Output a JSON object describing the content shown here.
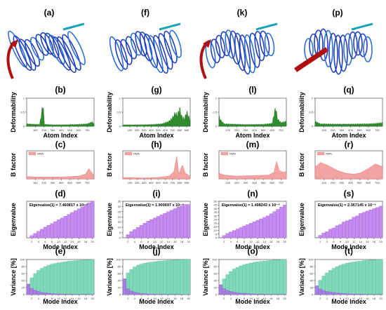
{
  "colors": {
    "deform_fill": "#2e8b2e",
    "deform_line": "#1f6e1f",
    "bfactor_fill": "#f4a3a3",
    "bfactor_line": "#e06060",
    "eig_bar": "#c58cf0",
    "eig_edge": "#9a55d4",
    "var_cumulative": "#7fd8b8",
    "var_individual": "#a77fe0",
    "protein_blue": "#1f3fbf",
    "arrow_red": "#b01010",
    "arrow_teal": "#1aa3b8",
    "grid": "#d8d8d8",
    "axis": "#333333"
  },
  "icons": [
    "protein-ribbon-structure",
    "motion-arrow"
  ],
  "structure_labels": [
    "(a)",
    "(f)",
    "(k)",
    "(p)"
  ],
  "axis_titles": {
    "deformability": "Deformability",
    "atom_index": "Atom Index",
    "bfactor": "B factor",
    "eigenvalue": "Eigenvalue",
    "mode_index": "Mode Index",
    "variance": "Variance [%]"
  },
  "legend_nma": "NMA",
  "chart_data": [
    {
      "type": "area",
      "label": "(b)",
      "row": "deformability",
      "title": "",
      "xlabel": "Atom Index",
      "ylabel": "Deformability",
      "xlim": [
        0,
        780
      ],
      "ylim": [
        0,
        1
      ],
      "xticks": [
        "100",
        "200",
        "300",
        "400",
        "500",
        "600",
        "700"
      ],
      "yticks": [
        "0",
        "0.5",
        "1"
      ],
      "profile": [
        [
          0,
          0.1
        ],
        [
          100,
          0.08
        ],
        [
          150,
          0.07
        ],
        [
          190,
          0.95
        ],
        [
          205,
          0.08
        ],
        [
          300,
          0.06
        ],
        [
          420,
          0.06
        ],
        [
          520,
          0.07
        ],
        [
          620,
          0.08
        ],
        [
          700,
          0.1
        ],
        [
          760,
          0.18
        ],
        [
          780,
          0.1
        ]
      ]
    },
    {
      "type": "area",
      "label": "(g)",
      "row": "deformability",
      "title": "",
      "xlabel": "Atom Index",
      "ylabel": "Deformability",
      "xlim": [
        0,
        950
      ],
      "ylim": [
        0,
        1
      ],
      "xticks": [
        "100",
        "200",
        "300",
        "400",
        "500",
        "600",
        "700",
        "800",
        "900"
      ],
      "yticks": [
        "0",
        "0.5",
        "1"
      ],
      "profile": [
        [
          0,
          0.06
        ],
        [
          200,
          0.06
        ],
        [
          400,
          0.07
        ],
        [
          550,
          0.1
        ],
        [
          650,
          0.2
        ],
        [
          700,
          0.35
        ],
        [
          740,
          0.55
        ],
        [
          770,
          0.45
        ],
        [
          800,
          0.75
        ],
        [
          830,
          0.4
        ],
        [
          870,
          0.3
        ],
        [
          900,
          0.6
        ],
        [
          950,
          0.25
        ]
      ]
    },
    {
      "type": "area",
      "label": "(l)",
      "row": "deformability",
      "title": "",
      "xlabel": "Atom Index",
      "ylabel": "Deformability",
      "xlim": [
        0,
        760
      ],
      "ylim": [
        0,
        1
      ],
      "xticks": [
        "100",
        "200",
        "300",
        "400",
        "500",
        "600",
        "700"
      ],
      "yticks": [
        "0",
        "0.5",
        "1"
      ],
      "profile": [
        [
          0,
          0.4
        ],
        [
          20,
          0.25
        ],
        [
          60,
          0.1
        ],
        [
          300,
          0.07
        ],
        [
          500,
          0.08
        ],
        [
          600,
          0.12
        ],
        [
          640,
          0.8
        ],
        [
          660,
          0.3
        ],
        [
          700,
          0.15
        ],
        [
          760,
          0.2
        ]
      ]
    },
    {
      "type": "area",
      "label": "(q)",
      "row": "deformability",
      "title": "",
      "xlabel": "Atom Index",
      "ylabel": "Deformability",
      "xlim": [
        0,
        760
      ],
      "ylim": [
        0,
        1
      ],
      "xticks": [
        "100",
        "200",
        "300",
        "400",
        "500",
        "600",
        "700"
      ],
      "yticks": [
        "0",
        "0.5",
        "1"
      ],
      "profile": [
        [
          0,
          0.2
        ],
        [
          60,
          0.1
        ],
        [
          200,
          0.09
        ],
        [
          400,
          0.09
        ],
        [
          600,
          0.1
        ],
        [
          700,
          0.12
        ],
        [
          760,
          0.15
        ]
      ]
    },
    {
      "type": "area",
      "label": "(c)",
      "row": "bfactor",
      "title": "",
      "xlabel": "",
      "ylabel": "B factor",
      "xlim": [
        0,
        780
      ],
      "ylim": [
        0,
        60
      ],
      "xticks": [
        "100",
        "200",
        "300",
        "400",
        "500",
        "600",
        "700"
      ],
      "yticks": [],
      "legend": "NMA",
      "profile": [
        [
          0,
          5
        ],
        [
          100,
          4
        ],
        [
          200,
          4
        ],
        [
          300,
          4
        ],
        [
          400,
          4
        ],
        [
          500,
          5
        ],
        [
          600,
          6
        ],
        [
          680,
          10
        ],
        [
          720,
          22
        ],
        [
          760,
          12
        ],
        [
          780,
          6
        ]
      ]
    },
    {
      "type": "area",
      "label": "(h)",
      "row": "bfactor",
      "title": "",
      "xlabel": "",
      "ylabel": "B factor",
      "xlim": [
        0,
        950
      ],
      "ylim": [
        0,
        60
      ],
      "xticks": [
        "100",
        "200",
        "300",
        "400",
        "500",
        "600",
        "700",
        "800",
        "900"
      ],
      "yticks": [],
      "legend": "NMA",
      "profile": [
        [
          0,
          3
        ],
        [
          300,
          2
        ],
        [
          500,
          3
        ],
        [
          650,
          6
        ],
        [
          720,
          15
        ],
        [
          760,
          48
        ],
        [
          790,
          10
        ],
        [
          840,
          30
        ],
        [
          880,
          12
        ],
        [
          950,
          6
        ]
      ]
    },
    {
      "type": "area",
      "label": "(m)",
      "row": "bfactor",
      "title": "",
      "xlabel": "",
      "ylabel": "B factor",
      "xlim": [
        0,
        760
      ],
      "ylim": [
        0,
        60
      ],
      "xticks": [
        "100",
        "200",
        "300",
        "400",
        "500",
        "600",
        "700"
      ],
      "yticks": [],
      "legend": "NMA",
      "profile": [
        [
          0,
          12
        ],
        [
          60,
          8
        ],
        [
          200,
          6
        ],
        [
          400,
          7
        ],
        [
          560,
          8
        ],
        [
          620,
          14
        ],
        [
          650,
          38
        ],
        [
          680,
          18
        ],
        [
          720,
          14
        ],
        [
          760,
          16
        ]
      ]
    },
    {
      "type": "area",
      "label": "(r)",
      "row": "bfactor",
      "title": "",
      "xlabel": "",
      "ylabel": "B factor",
      "xlim": [
        0,
        760
      ],
      "ylim": [
        0,
        60
      ],
      "xticks": [
        "100",
        "200",
        "300",
        "400",
        "500",
        "600",
        "700"
      ],
      "yticks": [],
      "legend": "NMA",
      "profile": [
        [
          0,
          25
        ],
        [
          60,
          35
        ],
        [
          150,
          28
        ],
        [
          250,
          18
        ],
        [
          350,
          12
        ],
        [
          430,
          10
        ],
        [
          500,
          12
        ],
        [
          600,
          22
        ],
        [
          680,
          32
        ],
        [
          760,
          26
        ]
      ]
    },
    {
      "type": "bar",
      "label": "(d)",
      "row": "eigenvalue",
      "title": "",
      "xlabel": "Mode Index",
      "ylabel": "Eigenvalue",
      "annotation": "Eigenvalue(1) = 7.460817 x 10⁻⁴",
      "categories": [
        "1",
        "2",
        "3",
        "4",
        "5",
        "6",
        "7",
        "8",
        "9",
        "10",
        "11",
        "12",
        "13",
        "14",
        "15",
        "16",
        "17",
        "18",
        "19",
        "20"
      ],
      "values": [
        1,
        9,
        17,
        25,
        33,
        41,
        48,
        55,
        62,
        69,
        76,
        83,
        90,
        97,
        104,
        111,
        118,
        126,
        134,
        140
      ],
      "ylim": [
        0,
        140
      ],
      "xticks": [
        "2",
        "4",
        "6",
        "8",
        "10",
        "12",
        "14",
        "16",
        "18",
        "20"
      ],
      "yticks": []
    },
    {
      "type": "bar",
      "label": "(i)",
      "row": "eigenvalue",
      "title": "",
      "xlabel": "Mode Index",
      "ylabel": "Eigenvalue",
      "annotation": "Eigenvalue(1) = 1.900697 x 10⁻⁴",
      "categories": [
        "1",
        "2",
        "3",
        "4",
        "5",
        "6",
        "7",
        "8",
        "9",
        "10",
        "11",
        "12",
        "13",
        "14",
        "15",
        "16",
        "17",
        "18",
        "19",
        "20"
      ],
      "values": [
        0.2,
        3,
        6,
        8,
        10,
        12,
        14,
        16,
        17.5,
        19,
        20.5,
        22,
        23.5,
        25,
        26.5,
        28,
        29.5,
        31,
        32,
        32
      ],
      "ylim": [
        0,
        35
      ],
      "xticks": [
        "2",
        "4",
        "6",
        "8",
        "10",
        "12",
        "14",
        "16",
        "18",
        "20"
      ],
      "yticks": [
        "0",
        "5",
        "10",
        "15",
        "20",
        "25",
        "30",
        "35"
      ]
    },
    {
      "type": "bar",
      "label": "(n)",
      "row": "eigenvalue",
      "title": "",
      "xlabel": "Mode Index",
      "ylabel": "Eigenvalue",
      "annotation": "Eigenvalue(1) = 1.498243 x 10⁻⁴",
      "categories": [
        "1",
        "2",
        "3",
        "4",
        "5",
        "6",
        "7",
        "8",
        "9",
        "10",
        "11",
        "12",
        "13",
        "14",
        "15",
        "16",
        "17",
        "18",
        "19",
        "20"
      ],
      "values": [
        0.2,
        3,
        6,
        8,
        10,
        12,
        14,
        16,
        18,
        20,
        22,
        24,
        26,
        28,
        30,
        33,
        36,
        39,
        42,
        45
      ],
      "ylim": [
        0,
        50
      ],
      "xticks": [
        "2",
        "4",
        "6",
        "8",
        "10",
        "12",
        "14",
        "16",
        "18",
        "20"
      ],
      "yticks": [
        "0",
        "5",
        "10",
        "15",
        "20",
        "25",
        "30",
        "35",
        "40",
        "45",
        "50"
      ]
    },
    {
      "type": "bar",
      "label": "(s)",
      "row": "eigenvalue",
      "title": "",
      "xlabel": "Mode Index",
      "ylabel": "Eigenvalue",
      "annotation": "Eigenvalue(1) = 2.367145 x 10⁻⁴",
      "categories": [
        "1",
        "2",
        "3",
        "4",
        "5",
        "6",
        "7",
        "8",
        "9",
        "10",
        "11",
        "12",
        "13",
        "14",
        "15",
        "16",
        "17",
        "18",
        "19",
        "20"
      ],
      "values": [
        0.3,
        2,
        4,
        5,
        7,
        8,
        10,
        11,
        13,
        14,
        15,
        17,
        18,
        20,
        21,
        22,
        23,
        24,
        25,
        26
      ],
      "ylim": [
        0,
        30
      ],
      "xticks": [
        "2",
        "4",
        "6",
        "8",
        "10",
        "12",
        "14",
        "16",
        "18",
        "20"
      ],
      "yticks": []
    },
    {
      "type": "bar",
      "label": "(e)",
      "row": "variance",
      "title": "",
      "xlabel": "Mode Index",
      "ylabel": "Variance [%]",
      "categories": [
        "1",
        "2",
        "3",
        "4",
        "5",
        "6",
        "7",
        "8",
        "9",
        "10",
        "11",
        "12",
        "13",
        "14",
        "15",
        "16",
        "17",
        "18",
        "19",
        "20"
      ],
      "series": [
        {
          "values": [
            30,
            48,
            60,
            69,
            75,
            80,
            84,
            87,
            89,
            91,
            92.5,
            94,
            95,
            96,
            97,
            97.5,
            98,
            98.5,
            99,
            100
          ]
        },
        {
          "values": [
            30,
            18,
            12,
            9,
            6,
            5,
            4,
            3,
            2,
            2,
            1.5,
            1.5,
            1,
            1,
            1,
            0.5,
            0.5,
            0.5,
            0.5,
            0.5
          ]
        }
      ],
      "ylim": [
        0,
        100
      ],
      "xticks": [
        "2",
        "4",
        "6",
        "8",
        "10",
        "12",
        "14",
        "16",
        "18",
        "20"
      ],
      "yticks": [
        "0",
        "20",
        "40",
        "60",
        "80",
        "100"
      ]
    },
    {
      "type": "bar",
      "label": "(j)",
      "row": "variance",
      "title": "",
      "xlabel": "Mode Index",
      "ylabel": "Variance [%]",
      "categories": [
        "1",
        "2",
        "3",
        "4",
        "5",
        "6",
        "7",
        "8",
        "9",
        "10",
        "11",
        "12",
        "13",
        "14",
        "15",
        "16",
        "17",
        "18",
        "19",
        "20"
      ],
      "series": [
        {
          "values": [
            45,
            62,
            72,
            79,
            84,
            87,
            89.5,
            91.5,
            93,
            94,
            95,
            96,
            96.7,
            97.3,
            98,
            98.5,
            99,
            99.3,
            99.7,
            100
          ]
        },
        {
          "values": [
            45,
            17,
            10,
            7,
            5,
            3,
            2.5,
            2,
            1.5,
            1,
            1,
            1,
            0.7,
            0.6,
            0.6,
            0.5,
            0.5,
            0.3,
            0.3,
            0.3
          ]
        }
      ],
      "ylim": [
        0,
        100
      ],
      "xticks": [
        "2",
        "4",
        "6",
        "8",
        "10",
        "12",
        "14",
        "16",
        "18",
        "20"
      ],
      "yticks": [
        "0",
        "20",
        "40",
        "60",
        "80",
        "100"
      ]
    },
    {
      "type": "bar",
      "label": "(o)",
      "row": "variance",
      "title": "",
      "xlabel": "Mode Index",
      "ylabel": "Variance [%]",
      "categories": [
        "1",
        "2",
        "3",
        "4",
        "5",
        "6",
        "7",
        "8",
        "9",
        "10",
        "11",
        "12",
        "13",
        "14",
        "15",
        "16",
        "17",
        "18",
        "19",
        "20"
      ],
      "series": [
        {
          "values": [
            28,
            45,
            57,
            66,
            73,
            78,
            82,
            85.5,
            88,
            90,
            92,
            93.5,
            95,
            96,
            97,
            97.8,
            98.5,
            99,
            99.5,
            100
          ]
        },
        {
          "values": [
            28,
            17,
            12,
            9,
            7,
            5,
            4,
            3.5,
            2.5,
            2,
            2,
            1.5,
            1.5,
            1,
            1,
            0.8,
            0.7,
            0.5,
            0.5,
            0.5
          ]
        }
      ],
      "ylim": [
        0,
        100
      ],
      "xticks": [
        "2",
        "4",
        "6",
        "8",
        "10",
        "12",
        "14",
        "16",
        "18",
        "20"
      ],
      "yticks": [
        "0",
        "20",
        "40",
        "60",
        "80",
        "100"
      ]
    },
    {
      "type": "bar",
      "label": "(t)",
      "row": "variance",
      "title": "",
      "xlabel": "Mode Index",
      "ylabel": "Variance [%]",
      "categories": [
        "1",
        "2",
        "3",
        "4",
        "5",
        "6",
        "7",
        "8",
        "9",
        "10",
        "11",
        "12",
        "13",
        "14",
        "15",
        "16",
        "17",
        "18",
        "19",
        "20"
      ],
      "series": [
        {
          "values": [
            25,
            41,
            53,
            62,
            69,
            75,
            80,
            84,
            87,
            89.5,
            91.5,
            93,
            94.5,
            95.8,
            97,
            97.8,
            98.5,
            99,
            99.5,
            100
          ]
        },
        {
          "values": [
            25,
            16,
            12,
            9,
            7,
            6,
            5,
            4,
            3,
            2.5,
            2,
            1.5,
            1.5,
            1.3,
            1.2,
            0.8,
            0.7,
            0.5,
            0.5,
            0.5
          ]
        }
      ],
      "ylim": [
        0,
        100
      ],
      "xticks": [
        "2",
        "4",
        "6",
        "8",
        "10",
        "12",
        "14",
        "16",
        "18",
        "20"
      ],
      "yticks": [
        "0",
        "20",
        "40",
        "60",
        "80",
        "100"
      ]
    }
  ]
}
